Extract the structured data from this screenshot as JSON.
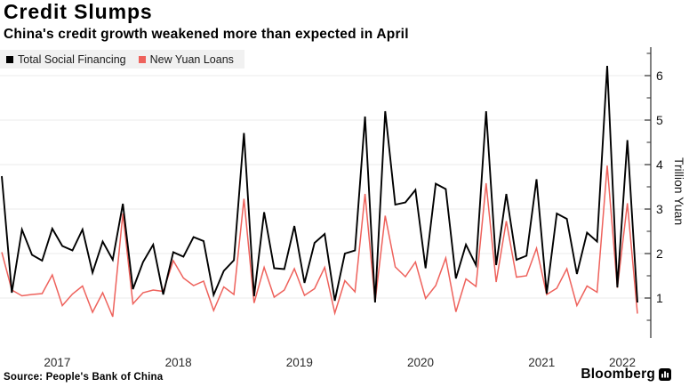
{
  "header": {
    "title": "Credit Slumps",
    "subtitle": "China's credit growth weakened more than expected in April"
  },
  "legend": {
    "items": [
      {
        "label": "Total Social Financing",
        "color": "#000000"
      },
      {
        "label": "New Yuan Loans",
        "color": "#ee625c"
      }
    ]
  },
  "chart_data": {
    "type": "line",
    "title": "Credit Slumps",
    "subtitle": "China's credit growth weakened more than expected in April",
    "ylabel": "Trillion Yuan",
    "ylim": [
      0,
      6.6
    ],
    "yticks": [
      1,
      2,
      3,
      4,
      5,
      6
    ],
    "grid": "horizontal",
    "legend_position": "top-left",
    "axis_side": "right",
    "x_year_labels": [
      "2017",
      "2018",
      "2019",
      "2020",
      "2021",
      "2022"
    ],
    "x_months": [
      "2017-01",
      "2017-02",
      "2017-03",
      "2017-04",
      "2017-05",
      "2017-06",
      "2017-07",
      "2017-08",
      "2017-09",
      "2017-10",
      "2017-11",
      "2017-12",
      "2018-01",
      "2018-02",
      "2018-03",
      "2018-04",
      "2018-05",
      "2018-06",
      "2018-07",
      "2018-08",
      "2018-09",
      "2018-10",
      "2018-11",
      "2018-12",
      "2019-01",
      "2019-02",
      "2019-03",
      "2019-04",
      "2019-05",
      "2019-06",
      "2019-07",
      "2019-08",
      "2019-09",
      "2019-10",
      "2019-11",
      "2019-12",
      "2020-01",
      "2020-02",
      "2020-03",
      "2020-04",
      "2020-05",
      "2020-06",
      "2020-07",
      "2020-08",
      "2020-09",
      "2020-10",
      "2020-11",
      "2020-12",
      "2021-01",
      "2021-02",
      "2021-03",
      "2021-04",
      "2021-05",
      "2021-06",
      "2021-07",
      "2021-08",
      "2021-09",
      "2021-10",
      "2021-11",
      "2021-12",
      "2022-01",
      "2022-02",
      "2022-03",
      "2022-04"
    ],
    "series": [
      {
        "name": "Total Social Financing",
        "color": "#000000",
        "values": [
          3.74,
          1.12,
          2.54,
          1.97,
          1.84,
          2.56,
          2.17,
          2.07,
          2.54,
          1.57,
          2.27,
          1.86,
          3.12,
          1.2,
          1.81,
          2.2,
          1.08,
          2.03,
          1.93,
          2.37,
          2.28,
          1.07,
          1.61,
          1.85,
          4.71,
          1.04,
          2.93,
          1.67,
          1.65,
          2.62,
          1.34,
          2.24,
          2.44,
          0.94,
          2.0,
          2.07,
          5.08,
          0.9,
          5.2,
          3.1,
          3.15,
          3.43,
          1.67,
          3.57,
          3.45,
          1.44,
          2.2,
          1.74,
          5.2,
          1.74,
          3.34,
          1.86,
          1.95,
          3.67,
          1.1,
          2.9,
          2.78,
          1.54,
          2.47,
          2.27,
          6.22,
          1.24,
          4.55,
          0.9
        ]
      },
      {
        "name": "New Yuan Loans",
        "color": "#ee625c",
        "values": [
          2.03,
          1.18,
          1.05,
          1.08,
          1.1,
          1.52,
          0.83,
          1.09,
          1.27,
          0.68,
          1.12,
          0.58,
          2.9,
          0.87,
          1.12,
          1.18,
          1.15,
          1.84,
          1.45,
          1.28,
          1.38,
          0.72,
          1.25,
          1.08,
          3.23,
          0.89,
          1.69,
          1.02,
          1.18,
          1.66,
          1.06,
          1.21,
          1.69,
          0.66,
          1.39,
          1.14,
          3.34,
          0.91,
          2.85,
          1.7,
          1.48,
          1.81,
          0.99,
          1.28,
          1.9,
          0.69,
          1.43,
          1.26,
          3.58,
          1.36,
          2.73,
          1.47,
          1.5,
          2.12,
          1.08,
          1.22,
          1.66,
          0.83,
          1.27,
          1.13,
          3.98,
          1.23,
          3.13,
          0.65
        ]
      }
    ]
  },
  "footer": {
    "source": "Source: People's Bank of China",
    "brand": "Bloomberg"
  }
}
